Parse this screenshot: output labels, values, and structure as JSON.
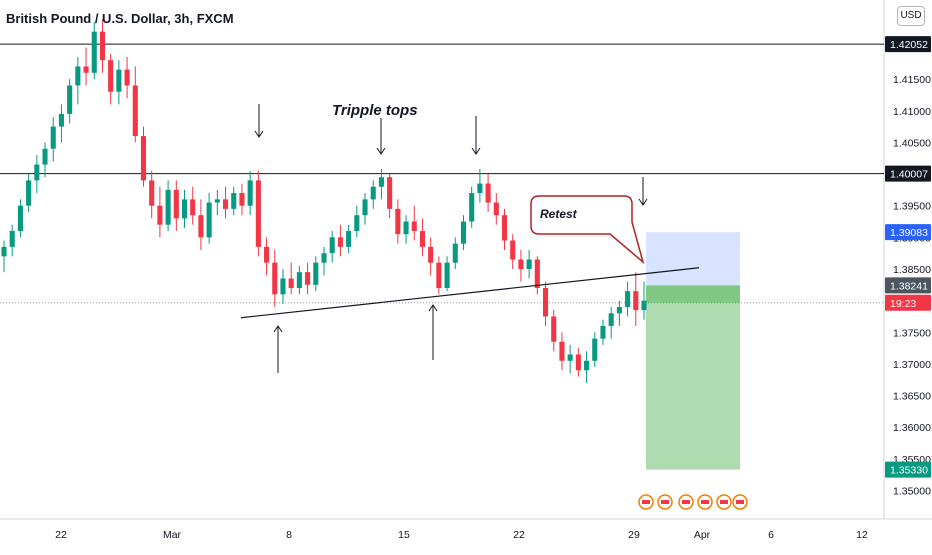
{
  "header": {
    "title": "British Pound / U.S. Dollar, 3h, FXCM",
    "currency_button": "USD"
  },
  "chart_data": {
    "type": "candlestick",
    "ylim": [
      1.3455,
      1.4275
    ],
    "y_ticks": [
      "1.42000",
      "1.41500",
      "1.41000",
      "1.40500",
      "1.40000",
      "1.39500",
      "1.39000",
      "1.38500",
      "1.38000",
      "1.37500",
      "1.37000",
      "1.36500",
      "1.36000",
      "1.35500",
      "1.35000"
    ],
    "x_ticks": [
      "22",
      "Mar",
      "8",
      "15",
      "22",
      "29",
      "Apr",
      "6",
      "12"
    ],
    "price_labels": [
      {
        "text": "1.42052",
        "value": 1.42052,
        "bg": "#131722",
        "fg": "#ffffff"
      },
      {
        "text": "1.40007",
        "value": 1.40007,
        "bg": "#131722",
        "fg": "#ffffff"
      },
      {
        "text": "1.39083",
        "value": 1.39083,
        "bg": "#2962ff",
        "fg": "#ffffff"
      },
      {
        "text": "1.38241",
        "value": 1.38241,
        "bg": "#4a5560",
        "fg": "#ffffff"
      },
      {
        "text": "19:23",
        "value": 1.37966,
        "bg": "#f23645",
        "fg": "#ffffff"
      },
      {
        "text": "1.35330",
        "value": 1.3533,
        "bg": "#089981",
        "fg": "#ffffff"
      }
    ],
    "current_price": 1.37966,
    "horizontal_lines": [
      1.42052,
      1.40007
    ],
    "trendline": {
      "start": [
        "Mar 3",
        1.3773
      ],
      "end": [
        "Apr 2",
        1.3852
      ]
    },
    "annotations": [
      {
        "text": "Tripple tops"
      },
      {
        "text": "Retest"
      }
    ],
    "position": {
      "side": "short",
      "entry": 1.38241,
      "stop": 1.39083,
      "target": 1.3533
    },
    "candles": [
      [
        1.387,
        1.3895,
        1.3845,
        1.3885
      ],
      [
        1.3885,
        1.392,
        1.387,
        1.391
      ],
      [
        1.391,
        1.396,
        1.39,
        1.395
      ],
      [
        1.395,
        1.4,
        1.394,
        1.399
      ],
      [
        1.399,
        1.403,
        1.397,
        1.4015
      ],
      [
        1.4015,
        1.405,
        1.3995,
        1.404
      ],
      [
        1.404,
        1.409,
        1.402,
        1.4075
      ],
      [
        1.4075,
        1.411,
        1.405,
        1.4095
      ],
      [
        1.4095,
        1.415,
        1.408,
        1.414
      ],
      [
        1.414,
        1.4185,
        1.411,
        1.417
      ],
      [
        1.417,
        1.42,
        1.414,
        1.416
      ],
      [
        1.416,
        1.424,
        1.415,
        1.4225
      ],
      [
        1.4225,
        1.4245,
        1.416,
        1.418
      ],
      [
        1.418,
        1.419,
        1.411,
        1.413
      ],
      [
        1.413,
        1.418,
        1.411,
        1.4165
      ],
      [
        1.4165,
        1.4185,
        1.412,
        1.414
      ],
      [
        1.414,
        1.417,
        1.405,
        1.406
      ],
      [
        1.406,
        1.4075,
        1.398,
        1.399
      ],
      [
        1.399,
        1.4005,
        1.393,
        1.395
      ],
      [
        1.395,
        1.398,
        1.39,
        1.392
      ],
      [
        1.392,
        1.399,
        1.391,
        1.3975
      ],
      [
        1.3975,
        1.399,
        1.391,
        1.393
      ],
      [
        1.393,
        1.3975,
        1.3915,
        1.396
      ],
      [
        1.396,
        1.398,
        1.392,
        1.3935
      ],
      [
        1.3935,
        1.396,
        1.388,
        1.39
      ],
      [
        1.39,
        1.397,
        1.389,
        1.3955
      ],
      [
        1.3955,
        1.3975,
        1.3935,
        1.396
      ],
      [
        1.396,
        1.398,
        1.393,
        1.3945
      ],
      [
        1.3945,
        1.398,
        1.3935,
        1.397
      ],
      [
        1.397,
        1.3985,
        1.3935,
        1.395
      ],
      [
        1.395,
        1.4005,
        1.3935,
        1.399
      ],
      [
        1.399,
        1.4005,
        1.387,
        1.3885
      ],
      [
        1.3885,
        1.39,
        1.384,
        1.386
      ],
      [
        1.386,
        1.388,
        1.379,
        1.381
      ],
      [
        1.381,
        1.385,
        1.3795,
        1.3835
      ],
      [
        1.3835,
        1.386,
        1.381,
        1.382
      ],
      [
        1.382,
        1.3855,
        1.381,
        1.3845
      ],
      [
        1.3845,
        1.386,
        1.381,
        1.3825
      ],
      [
        1.3825,
        1.387,
        1.3815,
        1.386
      ],
      [
        1.386,
        1.3885,
        1.384,
        1.3875
      ],
      [
        1.3875,
        1.391,
        1.386,
        1.39
      ],
      [
        1.39,
        1.392,
        1.387,
        1.3885
      ],
      [
        1.3885,
        1.392,
        1.3875,
        1.391
      ],
      [
        1.391,
        1.395,
        1.39,
        1.3935
      ],
      [
        1.3935,
        1.397,
        1.392,
        1.396
      ],
      [
        1.396,
        1.399,
        1.3945,
        1.398
      ],
      [
        1.398,
        1.4008,
        1.396,
        1.3995
      ],
      [
        1.3995,
        1.4,
        1.393,
        1.3945
      ],
      [
        1.3945,
        1.396,
        1.389,
        1.3905
      ],
      [
        1.3905,
        1.3935,
        1.389,
        1.3925
      ],
      [
        1.3925,
        1.395,
        1.3895,
        1.391
      ],
      [
        1.391,
        1.393,
        1.387,
        1.3885
      ],
      [
        1.3885,
        1.39,
        1.384,
        1.386
      ],
      [
        1.386,
        1.387,
        1.381,
        1.382
      ],
      [
        1.382,
        1.387,
        1.3815,
        1.386
      ],
      [
        1.386,
        1.39,
        1.385,
        1.389
      ],
      [
        1.389,
        1.3935,
        1.388,
        1.3925
      ],
      [
        1.3925,
        1.398,
        1.3915,
        1.397
      ],
      [
        1.397,
        1.4008,
        1.3955,
        1.3985
      ],
      [
        1.3985,
        1.4,
        1.394,
        1.3955
      ],
      [
        1.3955,
        1.397,
        1.392,
        1.3935
      ],
      [
        1.3935,
        1.3945,
        1.388,
        1.3895
      ],
      [
        1.3895,
        1.3905,
        1.385,
        1.3865
      ],
      [
        1.3865,
        1.388,
        1.383,
        1.385
      ],
      [
        1.385,
        1.388,
        1.3835,
        1.3865
      ],
      [
        1.3865,
        1.387,
        1.381,
        1.382
      ],
      [
        1.382,
        1.383,
        1.376,
        1.3775
      ],
      [
        1.3775,
        1.3785,
        1.372,
        1.3735
      ],
      [
        1.3735,
        1.375,
        1.369,
        1.3705
      ],
      [
        1.3705,
        1.373,
        1.3685,
        1.3715
      ],
      [
        1.3715,
        1.3725,
        1.368,
        1.369
      ],
      [
        1.369,
        1.372,
        1.367,
        1.3705
      ],
      [
        1.3705,
        1.375,
        1.3695,
        1.374
      ],
      [
        1.374,
        1.377,
        1.373,
        1.376
      ],
      [
        1.376,
        1.379,
        1.374,
        1.378
      ],
      [
        1.378,
        1.38,
        1.376,
        1.379
      ],
      [
        1.379,
        1.383,
        1.3775,
        1.3815
      ],
      [
        1.3815,
        1.3845,
        1.376,
        1.3785
      ],
      [
        1.3785,
        1.383,
        1.377,
        1.38
      ]
    ]
  }
}
